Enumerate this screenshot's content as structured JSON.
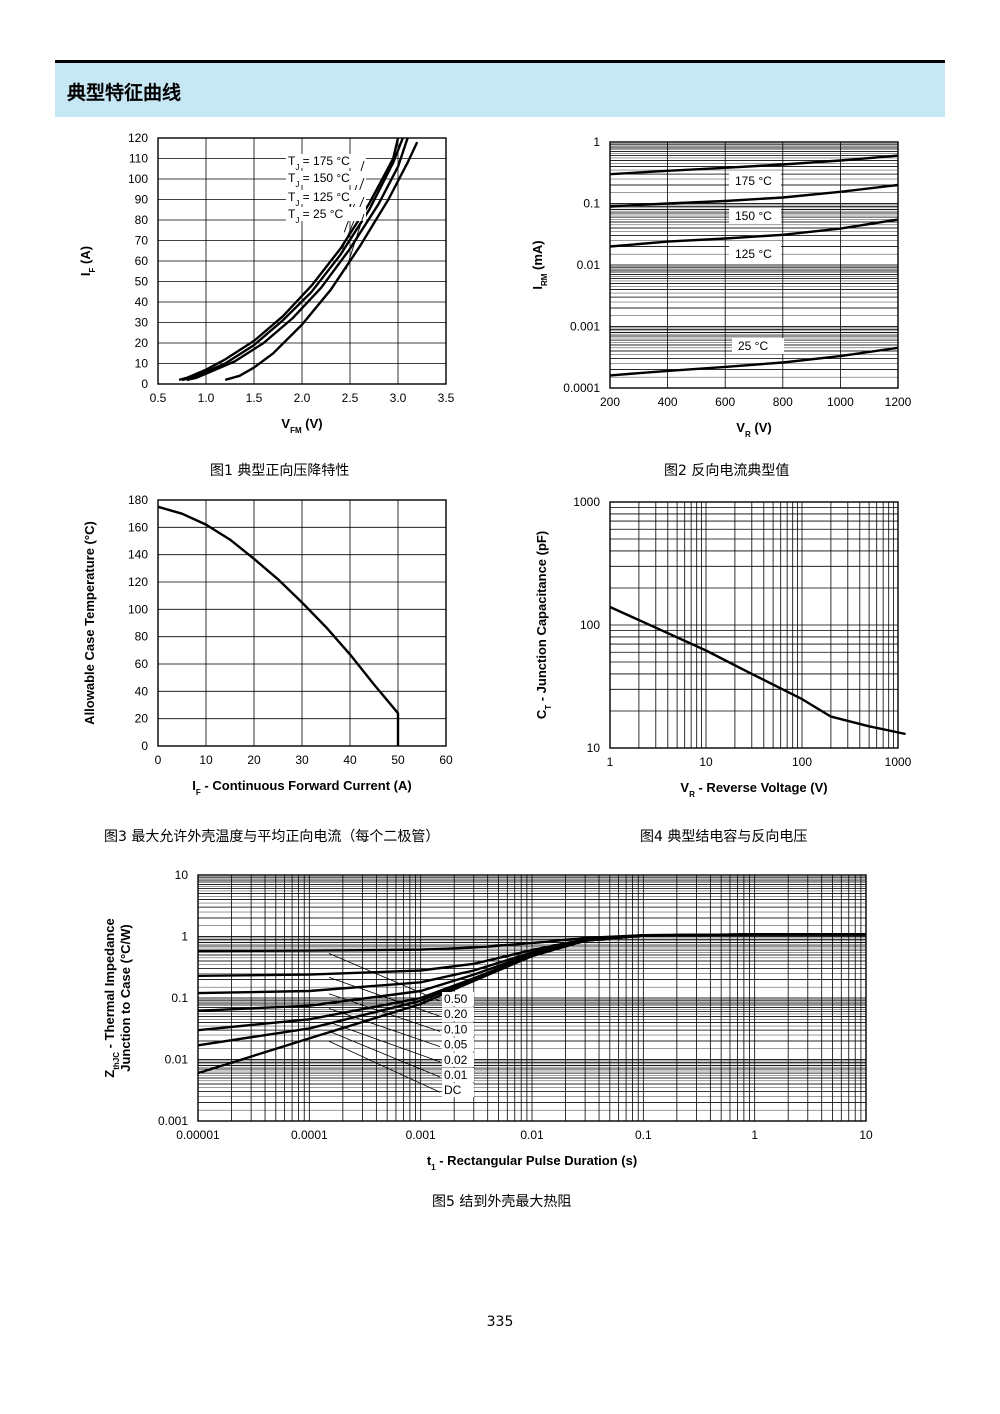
{
  "header": {
    "title": "典型特征曲线"
  },
  "page_number": "335",
  "chart_data": [
    {
      "type": "line",
      "caption": "图1 典型正向压降特性",
      "xlabel": "V<sub>FM</sub> (V)",
      "ylabel": "I<sub>F</sub> (A)",
      "xlim": [
        0.5,
        3.5
      ],
      "ylim": [
        0,
        120
      ],
      "xticks": [
        "0.5",
        "1.0",
        "1.5",
        "2.0",
        "2.5",
        "3.0",
        "3.5"
      ],
      "yticks": [
        "0",
        "10",
        "20",
        "30",
        "40",
        "50",
        "60",
        "70",
        "80",
        "90",
        "100",
        "110",
        "120"
      ],
      "grid": true,
      "series": [
        {
          "name": "T<sub>J</sub> = 175 °C",
          "x": [
            0.72,
            0.8,
            1.0,
            1.2,
            1.5,
            1.8,
            2.1,
            2.4,
            2.7,
            2.95,
            3.0
          ],
          "y": [
            2,
            3,
            7,
            12,
            21,
            33,
            48,
            66,
            88,
            110,
            120
          ]
        },
        {
          "name": "T<sub>J</sub> = 150 °C",
          "x": [
            0.75,
            0.85,
            1.0,
            1.2,
            1.5,
            1.8,
            2.1,
            2.4,
            2.7,
            2.95,
            3.05
          ],
          "y": [
            2,
            3,
            6,
            10,
            19,
            31,
            45,
            63,
            85,
            108,
            120
          ]
        },
        {
          "name": "T<sub>J</sub> = 125 °C",
          "x": [
            0.8,
            0.9,
            1.05,
            1.3,
            1.6,
            1.9,
            2.2,
            2.5,
            2.8,
            3.0,
            3.1
          ],
          "y": [
            2,
            3,
            6,
            11,
            20,
            32,
            47,
            66,
            88,
            106,
            120
          ]
        },
        {
          "name": "T<sub>J</sub> = 25 °C",
          "x": [
            1.2,
            1.35,
            1.5,
            1.7,
            2.0,
            2.3,
            2.6,
            2.9,
            3.1,
            3.2
          ],
          "y": [
            2,
            4,
            8,
            15,
            29,
            46,
            67,
            90,
            108,
            118
          ]
        }
      ]
    },
    {
      "type": "line",
      "caption": "图2 反向电流典型值",
      "xlabel": "V<sub>R</sub> (V)",
      "ylabel": "I<sub>RM</sub> (mA)",
      "xlim": [
        200,
        1200
      ],
      "ylim": [
        0.0001,
        1
      ],
      "yscale": "log",
      "xticks": [
        "200",
        "400",
        "600",
        "800",
        "1000",
        "1200"
      ],
      "yticks": [
        "0.0001",
        "0.001",
        "0.01",
        "0.1",
        "1"
      ],
      "grid": true,
      "series": [
        {
          "name": "175 °C",
          "x": [
            200,
            400,
            600,
            800,
            1000,
            1200
          ],
          "y": [
            0.3,
            0.34,
            0.38,
            0.43,
            0.5,
            0.6
          ]
        },
        {
          "name": "150 °C",
          "x": [
            200,
            400,
            600,
            800,
            1000,
            1200
          ],
          "y": [
            0.09,
            0.1,
            0.11,
            0.125,
            0.155,
            0.2
          ]
        },
        {
          "name": "125 °C",
          "x": [
            200,
            400,
            600,
            800,
            1000,
            1200
          ],
          "y": [
            0.02,
            0.024,
            0.027,
            0.031,
            0.039,
            0.055
          ]
        },
        {
          "name": "25 °C",
          "x": [
            200,
            400,
            600,
            800,
            1000,
            1200
          ],
          "y": [
            0.00016,
            0.00019,
            0.00022,
            0.00026,
            0.00033,
            0.00045
          ]
        }
      ]
    },
    {
      "type": "line",
      "caption": "图3 最大允许外壳温度与平均正向电流（每个二极管）",
      "xlabel": "I<sub>F</sub> - Continuous Forward Current (A)",
      "ylabel": "Allowable Case Temperature (°C)",
      "xlim": [
        0,
        60
      ],
      "ylim": [
        0,
        180
      ],
      "xticks": [
        "0",
        "10",
        "20",
        "30",
        "40",
        "50",
        "60"
      ],
      "yticks": [
        "0",
        "20",
        "40",
        "60",
        "80",
        "100",
        "120",
        "140",
        "160",
        "180"
      ],
      "grid": true,
      "series": [
        {
          "x": [
            0,
            5,
            10,
            15,
            20,
            25,
            30,
            35,
            40,
            45,
            50,
            50
          ],
          "y": [
            175,
            170,
            162,
            151,
            137,
            122,
            105,
            87,
            67,
            45,
            24,
            0
          ]
        }
      ]
    },
    {
      "type": "line",
      "caption": "图4 典型结电容与反向电压",
      "xlabel": "V<sub>R</sub> - Reverse Voltage (V)",
      "ylabel": "C<sub>T</sub> - Junction Capacitance (pF)",
      "xlim": [
        1,
        1000
      ],
      "ylim": [
        10,
        1000
      ],
      "xscale": "log",
      "yscale": "log",
      "xticks": [
        "1",
        "10",
        "100",
        "1000"
      ],
      "yticks": [
        "10",
        "100",
        "1000"
      ],
      "grid": true,
      "series": [
        {
          "x": [
            1,
            3,
            10,
            30,
            100,
            200,
            500,
            1200
          ],
          "y": [
            140,
            95,
            62,
            40,
            25,
            18,
            15,
            13
          ]
        }
      ]
    },
    {
      "type": "line",
      "caption": "图5 结到外壳最大热阻",
      "xlabel": "t<sub>1</sub> - Rectangular Pulse Duration (s)",
      "ylabel": "Z<sub>thJC</sub> - Thermal Impedance",
      "ylabel2": "Junction to Case (°C/W)",
      "xlim": [
        1e-05,
        10
      ],
      "ylim": [
        0.001,
        10
      ],
      "xscale": "log",
      "yscale": "log",
      "xticks": [
        "0.00001",
        "0.0001",
        "0.001",
        "0.01",
        "0.1",
        "1",
        "10"
      ],
      "yticks": [
        "0.001",
        "0.01",
        "0.1",
        "1",
        "10"
      ],
      "grid": true,
      "series": [
        {
          "name": "0.50",
          "x": [
            1e-05,
            0.0001,
            0.001,
            0.003,
            0.01,
            0.03,
            0.1,
            1,
            10
          ],
          "y": [
            0.58,
            0.59,
            0.61,
            0.66,
            0.78,
            0.95,
            1.05,
            1.08,
            1.08
          ]
        },
        {
          "name": "0.20",
          "x": [
            1e-05,
            0.0001,
            0.001,
            0.003,
            0.01,
            0.03,
            0.1,
            1,
            10
          ],
          "y": [
            0.23,
            0.24,
            0.28,
            0.36,
            0.6,
            0.9,
            1.05,
            1.08,
            1.08
          ]
        },
        {
          "name": "0.10",
          "x": [
            1e-05,
            0.0001,
            0.001,
            0.003,
            0.01,
            0.03,
            0.1,
            1,
            10
          ],
          "y": [
            0.12,
            0.13,
            0.18,
            0.28,
            0.55,
            0.88,
            1.04,
            1.08,
            1.08
          ]
        },
        {
          "name": "0.05",
          "x": [
            1e-05,
            0.0001,
            0.001,
            0.003,
            0.01,
            0.03,
            0.1,
            1,
            10
          ],
          "y": [
            0.062,
            0.075,
            0.13,
            0.24,
            0.52,
            0.87,
            1.04,
            1.08,
            1.08
          ]
        },
        {
          "name": "0.02",
          "x": [
            1e-05,
            0.0001,
            0.001,
            0.003,
            0.01,
            0.03,
            0.1,
            1,
            10
          ],
          "y": [
            0.03,
            0.045,
            0.1,
            0.21,
            0.5,
            0.86,
            1.04,
            1.08,
            1.08
          ]
        },
        {
          "name": "0.01",
          "x": [
            1e-05,
            0.0001,
            0.001,
            0.003,
            0.01,
            0.03,
            0.1,
            1,
            10
          ],
          "y": [
            0.017,
            0.032,
            0.09,
            0.2,
            0.49,
            0.86,
            1.04,
            1.08,
            1.08
          ]
        },
        {
          "name": "DC",
          "x": [
            1e-05,
            0.0001,
            0.001,
            0.003,
            0.01,
            0.03,
            0.1,
            1,
            10
          ],
          "y": [
            0.006,
            0.022,
            0.08,
            0.19,
            0.48,
            0.85,
            1.04,
            1.08,
            1.08
          ]
        }
      ]
    }
  ]
}
